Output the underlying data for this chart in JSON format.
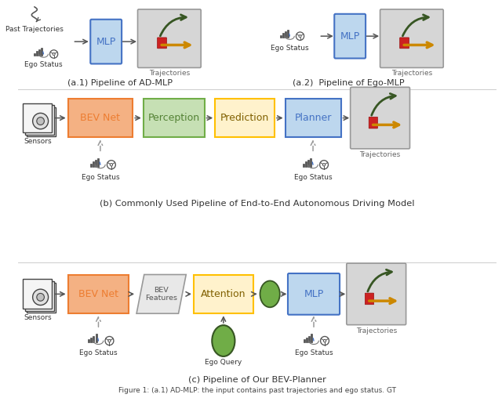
{
  "bg_color": "#ffffff",
  "section_a1_label": "(a.1) Pipeline of AD-MLP",
  "section_a2_label": "(a.2)  Pipeline of Ego-MLP",
  "section_b_label": "(b) Commonly Used Pipeline of End-to-End Autonomous Driving Model",
  "section_c_label": "(c) Pipeline of Our BEV-Planner",
  "figure_caption": "Figure 1: (a.1) AD-MLP: the input contains past trajectories and ego status. GT",
  "mlp_color": "#bdd7ee",
  "mlp_border": "#4472c4",
  "mlp_text": "#4472c4",
  "bev_net_color": "#f4b183",
  "bev_net_border": "#ed7d31",
  "bev_net_text": "#ed7d31",
  "perception_color": "#c6e0b4",
  "perception_border": "#70ad47",
  "perception_text": "#548235",
  "prediction_color": "#fff2cc",
  "prediction_border": "#ffc000",
  "prediction_text": "#806000",
  "planner_color": "#bdd7ee",
  "planner_border": "#4472c4",
  "planner_text": "#4472c4",
  "attention_color": "#fff2cc",
  "attention_border": "#ffc000",
  "attention_text": "#806000",
  "traj_box_color": "#d6d6d6",
  "traj_box_border": "#999999",
  "bev_feat_color": "#e8e8e8",
  "bev_feat_border": "#999999",
  "sensor_border": "#444444",
  "green_circle_color": "#70ad47",
  "green_circle_border": "#375623",
  "arrow_color": "#555555",
  "dashed_arrow_color": "#999999",
  "text_dark": "#333333",
  "text_gray": "#666666"
}
